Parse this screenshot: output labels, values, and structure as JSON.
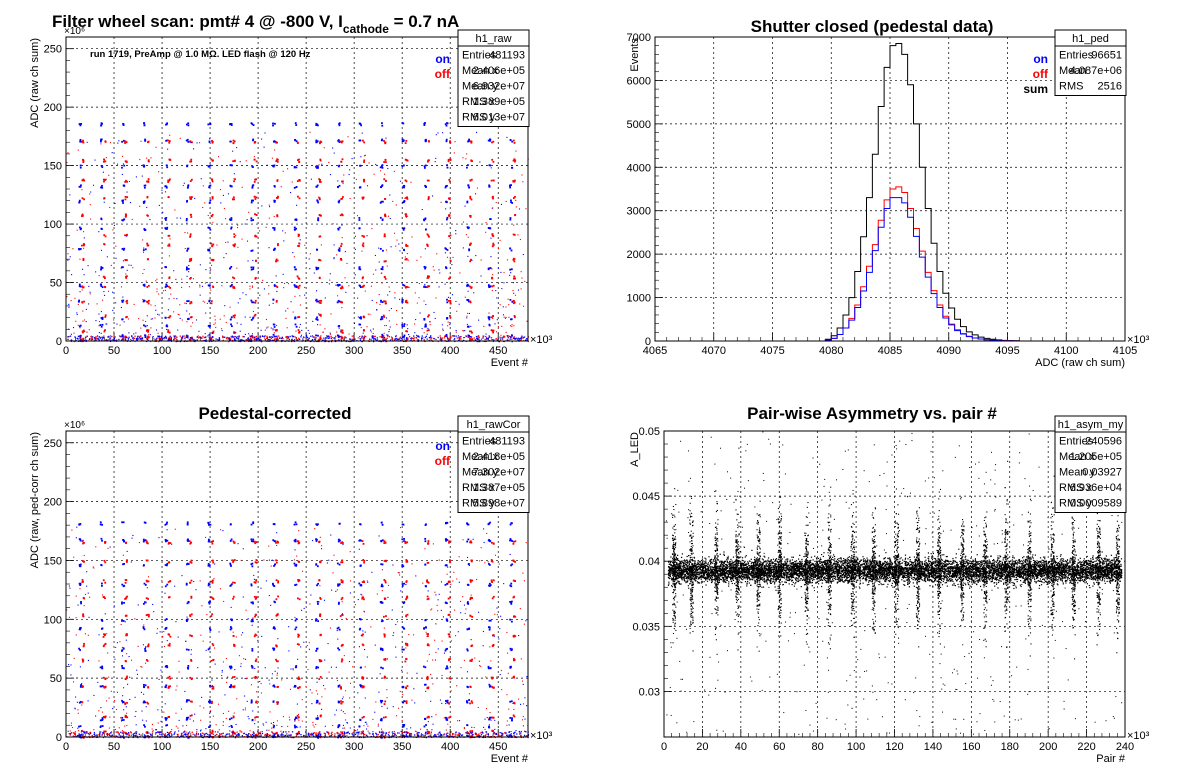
{
  "colors": {
    "on": "#0000ff",
    "off": "#ff0000",
    "sum": "#000000",
    "points": "#000000"
  },
  "panels": [
    {
      "id": "raw",
      "title": "Filter wheel scan: pmt#   4 @  -800 V, I",
      "title_sub": "cathode",
      "title_tail": " = 0.7 nA",
      "note": "run 1719, PreAmp @ 1.0 MΩ.  LED flash @  120 Hz",
      "legend": [
        {
          "label": "on",
          "color": "#0000ff"
        },
        {
          "label": "off",
          "color": "#ff0000"
        }
      ],
      "stats": {
        "name": "h1_raw",
        "rows": [
          {
            "k": "Entries",
            "v": "481193"
          },
          {
            "k": "Mean x",
            "v": "2.406e+05"
          },
          {
            "k": "Mean y",
            "v": "6.932e+07"
          },
          {
            "k": "RMS x",
            "v": "1.389e+05"
          },
          {
            "k": "RMS y",
            "v": "6.013e+07"
          }
        ]
      }
    },
    {
      "id": "ped",
      "title": "Shutter closed (pedestal data)",
      "legend": [
        {
          "label": "on",
          "color": "#0000ff"
        },
        {
          "label": "off",
          "color": "#ff0000"
        },
        {
          "label": "sum",
          "color": "#000000"
        }
      ],
      "stats": {
        "name": "h1_ped",
        "rows": [
          {
            "k": "Entries",
            "v": "96651"
          },
          {
            "k": "Mean",
            "v": "4.087e+06"
          },
          {
            "k": "RMS",
            "v": "2516"
          }
        ]
      }
    },
    {
      "id": "cor",
      "title": "Pedestal-corrected",
      "legend": [
        {
          "label": "on",
          "color": "#0000ff"
        },
        {
          "label": "off",
          "color": "#ff0000"
        }
      ],
      "stats": {
        "name": "h1_rawCor",
        "rows": [
          {
            "k": "Entries",
            "v": "481193"
          },
          {
            "k": "Mean x",
            "v": "2.418e+05"
          },
          {
            "k": "Mean y",
            "v": "7.302e+07"
          },
          {
            "k": "RMS x",
            "v": "1.387e+05"
          },
          {
            "k": "RMS y",
            "v": "5.898e+07"
          }
        ]
      }
    },
    {
      "id": "asym",
      "title": "Pair-wise Asymmetry vs. pair #",
      "stats": {
        "name": "h1_asym_my",
        "rows": [
          {
            "k": "Entries",
            "v": "240596"
          },
          {
            "k": "Mean x",
            "v": "1.205e+05"
          },
          {
            "k": "Mean y",
            "v": "0.03927"
          },
          {
            "k": "RMS x",
            "v": "6.936e+04"
          },
          {
            "k": "RMS y",
            "v": "0.0009589"
          }
        ]
      }
    }
  ],
  "chart_data": [
    {
      "type": "scatter",
      "title": "Filter wheel scan: pmt#   4 @  -800 V, I_cathode = 0.7 nA",
      "xlabel": "Event #",
      "ylabel": "ADC (raw ch sum)",
      "x_multiplier": "×10³",
      "y_multiplier": "×10⁶",
      "xlim": [
        0,
        481
      ],
      "ylim": [
        0,
        260
      ],
      "xticks": [
        0,
        50,
        100,
        150,
        200,
        250,
        300,
        350,
        400,
        450
      ],
      "yticks": [
        0,
        50,
        100,
        150,
        200,
        250
      ],
      "grid": true,
      "filter_steps": 21,
      "series": [
        {
          "name": "on",
          "levels": [
            186,
            172,
            150,
            133,
            120,
            105,
            97,
            79,
            63,
            48,
            35,
            20,
            14,
            5
          ]
        },
        {
          "name": "off",
          "levels": [
            171,
            155,
            138,
            123,
            108,
            91,
            83,
            70,
            55,
            47,
            34,
            22,
            9,
            3
          ]
        }
      ]
    },
    {
      "type": "histogram",
      "title": "Shutter closed (pedestal data)",
      "xlabel": "ADC (raw ch sum)",
      "ylabel": "Events",
      "x_multiplier": "×10³",
      "xlim": [
        4065,
        4105
      ],
      "ylim": [
        0,
        7000
      ],
      "xticks": [
        4065,
        4070,
        4075,
        4080,
        4085,
        4090,
        4095,
        4100,
        4105
      ],
      "yticks": [
        0,
        1000,
        2000,
        3000,
        4000,
        5000,
        6000,
        7000
      ],
      "grid": true,
      "bins": [
        4079.5,
        4080,
        4080.5,
        4081,
        4081.5,
        4082,
        4082.5,
        4083,
        4083.5,
        4084,
        4084.5,
        4085,
        4085.5,
        4086,
        4086.5,
        4087,
        4087.5,
        4088,
        4088.5,
        4089,
        4089.5,
        4090,
        4090.5,
        4091,
        4091.5,
        4092,
        4092.5,
        4093,
        4093.5,
        4094,
        4094.5,
        4095,
        4095.5,
        4096
      ],
      "series": [
        {
          "name": "sum",
          "values": [
            40,
            120,
            300,
            600,
            1000,
            1600,
            2400,
            3300,
            4300,
            5400,
            6300,
            6800,
            6850,
            6600,
            5900,
            5000,
            4000,
            3050,
            2250,
            1600,
            1100,
            760,
            500,
            330,
            210,
            140,
            90,
            60,
            40,
            25,
            15,
            10,
            5,
            0
          ]
        },
        {
          "name": "off",
          "values": [
            20,
            60,
            150,
            300,
            520,
            830,
            1250,
            1720,
            2220,
            2780,
            3250,
            3500,
            3550,
            3420,
            3050,
            2590,
            2070,
            1580,
            1160,
            830,
            570,
            390,
            260,
            170,
            110,
            70,
            45,
            30,
            20,
            12,
            8,
            5,
            2,
            0
          ]
        },
        {
          "name": "on",
          "values": [
            20,
            60,
            150,
            300,
            480,
            770,
            1150,
            1580,
            2080,
            2620,
            3050,
            3300,
            3300,
            3180,
            2850,
            2410,
            1930,
            1470,
            1090,
            770,
            530,
            370,
            240,
            160,
            100,
            70,
            45,
            30,
            20,
            13,
            7,
            5,
            3,
            0
          ]
        }
      ]
    },
    {
      "type": "scatter",
      "title": "Pedestal-corrected",
      "xlabel": "Event #",
      "ylabel": "ADC (raw, ped-corr ch sum)",
      "x_multiplier": "×10³",
      "y_multiplier": "×10⁶",
      "xlim": [
        0,
        481
      ],
      "ylim": [
        0,
        260
      ],
      "xticks": [
        0,
        50,
        100,
        150,
        200,
        250,
        300,
        350,
        400,
        450
      ],
      "yticks": [
        0,
        50,
        100,
        150,
        200,
        250
      ],
      "grid": true,
      "filter_steps": 21,
      "series": [
        {
          "name": "on",
          "levels": [
            182,
            168,
            147,
            130,
            115,
            100,
            93,
            75,
            60,
            44,
            31,
            16,
            10,
            1
          ]
        },
        {
          "name": "off",
          "values_note": "",
          "levels": [
            166,
            150,
            133,
            119,
            104,
            87,
            79,
            66,
            51,
            43,
            30,
            18,
            5,
            0.5
          ]
        }
      ]
    },
    {
      "type": "scatter",
      "title": "Pair-wise Asymmetry vs. pair #",
      "xlabel": "Pair #",
      "ylabel": "A_LED",
      "x_multiplier": "×10³",
      "xlim": [
        0,
        240
      ],
      "ylim": [
        0.0265,
        0.05
      ],
      "xticks": [
        0,
        20,
        40,
        60,
        80,
        100,
        120,
        140,
        160,
        180,
        200,
        220,
        240
      ],
      "yticks": [
        0.03,
        0.035,
        0.04,
        0.045,
        0.05
      ],
      "ytick_labels": [
        "0.03",
        "0.035",
        "0.04",
        "0.045",
        "0.05"
      ],
      "grid": true,
      "band_center": 0.0393,
      "band_halfwidth": 0.0008,
      "spike_positions": [
        5,
        14,
        27,
        38,
        49,
        60,
        74,
        86,
        98,
        109,
        121,
        132,
        143,
        155,
        167,
        178,
        190,
        202,
        213,
        226,
        236
      ]
    }
  ]
}
